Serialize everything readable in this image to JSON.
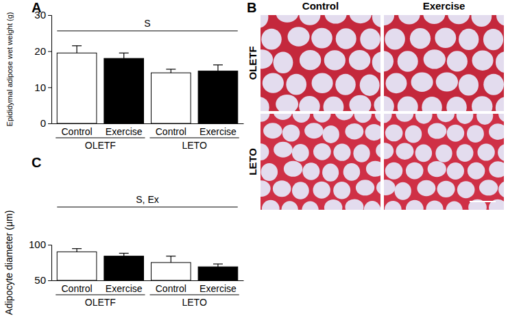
{
  "chart_data": [
    {
      "type": "bar",
      "title": "A",
      "categories": [
        "Control",
        "Exercise",
        "Control",
        "Exercise"
      ],
      "groups": [
        "OLETF",
        "LETO"
      ],
      "values": [
        19.5,
        18,
        14,
        14.5
      ],
      "errors": [
        2.0,
        1.5,
        1.0,
        1.7
      ],
      "colors": [
        "#ffffff",
        "#000000",
        "#ffffff",
        "#000000"
      ],
      "ylim": [
        0,
        30
      ],
      "yticks": [
        0,
        10,
        20,
        30
      ],
      "y_label": "Epididymal adipose wet weight (g)",
      "annotations": [
        "S"
      ]
    },
    {
      "type": "image",
      "title": "B",
      "columns": [
        "Control",
        "Exercise"
      ],
      "rows": [
        "OLETF",
        "LETO"
      ]
    },
    {
      "type": "bar",
      "title": "C",
      "categories": [
        "Control",
        "Exercise",
        "Control",
        "Exercise"
      ],
      "groups": [
        "OLETF",
        "LETO"
      ],
      "values": [
        90,
        84,
        75,
        69
      ],
      "errors": [
        4.5,
        4,
        9,
        4
      ],
      "colors": [
        "#ffffff",
        "#000000",
        "#ffffff",
        "#000000"
      ],
      "ylim": [
        50,
        100
      ],
      "yticks": [
        50,
        100
      ],
      "y_label": "Adipocyte diameter (μm)",
      "annotations": [
        "S, Ex"
      ]
    }
  ]
}
